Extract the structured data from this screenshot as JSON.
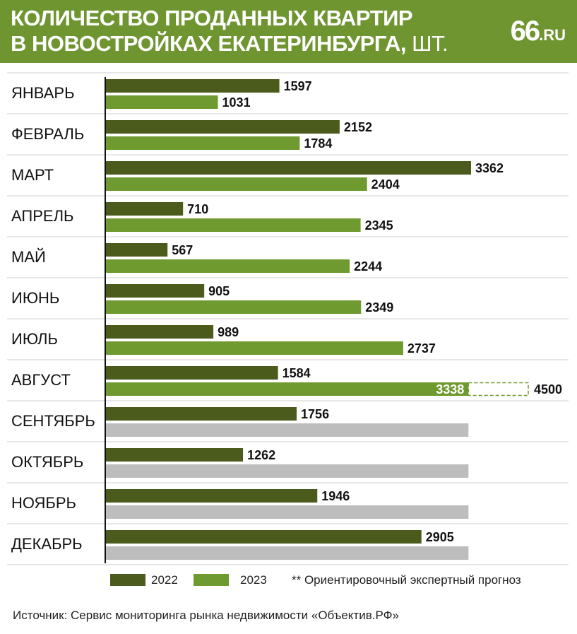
{
  "header": {
    "title_line1": "КОЛИЧЕСТВО ПРОДАННЫХ КВАРТИР",
    "title_line2": "В НОВОСТРОЙКАХ ЕКАТЕРИНБУРГА,",
    "title_unit": " ШТ.",
    "logo_number": "66",
    "logo_domain": ".RU"
  },
  "colors": {
    "header_bg": "#6f9530",
    "series_2022": "#4b5b1c",
    "series_2023": "#6f9a2f",
    "empty_bar": "#bdbdbd",
    "forecast_outline": "#6f9a2f",
    "grid": "#cfcfcf"
  },
  "chart_data": {
    "type": "bar",
    "orientation": "horizontal",
    "title": "КОЛИЧЕСТВО ПРОДАННЫХ КВАРТИР В НОВОСТРОЙКАХ ЕКАТЕРИНБУРГА, ШТ.",
    "categories": [
      "ЯНВАРЬ",
      "ФЕВРАЛЬ",
      "МАРТ",
      "АПРЕЛЬ",
      "МАЙ",
      "ИЮНЬ",
      "ИЮЛЬ",
      "АВГУСТ",
      "СЕНТЯБРЬ",
      "ОКТЯБРЬ",
      "НОЯБРЬ",
      "ДЕКАБРЬ"
    ],
    "series": [
      {
        "name": "2022",
        "values": [
          1597,
          2152,
          3362,
          710,
          567,
          905,
          989,
          1584,
          1756,
          1262,
          1946,
          2905
        ]
      },
      {
        "name": "2023",
        "values": [
          1031,
          1784,
          2404,
          2345,
          2244,
          2349,
          2737,
          3338,
          null,
          null,
          null,
          null
        ]
      }
    ],
    "forecast": {
      "category": "АВГУСТ",
      "series": "2023",
      "value": 4500
    },
    "empty_placeholder_value": 3338,
    "xlim": [
      0,
      3400
    ],
    "grid": true,
    "legend_position": "bottom"
  },
  "legend": {
    "label_2022": "2022",
    "label_2023": "2023",
    "note": "** Ориентировочный экспертный прогноз"
  },
  "source": "Источник: Сервис мониторинга рынка недвижимости «Объектив.РФ»"
}
